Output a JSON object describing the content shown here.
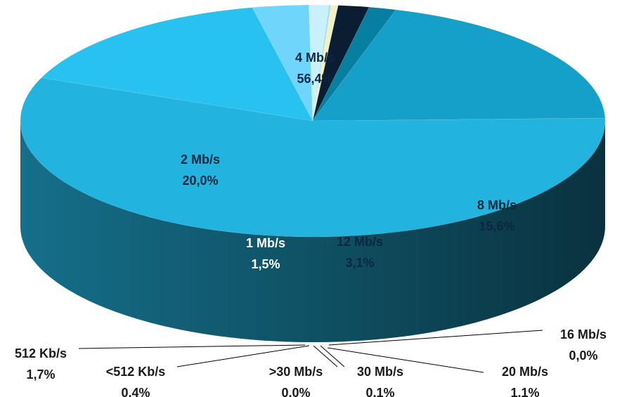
{
  "chart_data": {
    "type": "pie",
    "title": "",
    "slices": [
      {
        "label": "4 Mb/s",
        "value_text": "56,4%",
        "value": 56.4,
        "color": "#22b3de"
      },
      {
        "label": "8 Mb/s",
        "value_text": "15,6%",
        "value": 15.6,
        "color": "#27c2ef"
      },
      {
        "label": "12 Mb/s",
        "value_text": "3,1%",
        "value": 3.1,
        "color": "#6fd5fb"
      },
      {
        "label": "20 Mb/s",
        "value_text": "1,1%",
        "value": 1.1,
        "color": "#c9f1fd"
      },
      {
        "label": "30 Mb/s",
        "value_text": "0,1%",
        "value": 0.1,
        "color": "#9fdff2"
      },
      {
        "label": ">30 Mb/s",
        "value_text": "0,0%",
        "value": 0.0,
        "color": "#e2f0d6"
      },
      {
        "label": "<512 Kb/s",
        "value_text": "0,4%",
        "value": 0.4,
        "color": "#f3f1c3"
      },
      {
        "label": "512 Kb/s",
        "value_text": "1,7%",
        "value": 1.7,
        "color": "#0a1d33"
      },
      {
        "label": "1 Mb/s",
        "value_text": "1,5%",
        "value": 1.5,
        "color": "#067fa1"
      },
      {
        "label": "2 Mb/s",
        "value_text": "20,0%",
        "value": 20.0,
        "color": "#14a0c8"
      },
      {
        "label": "16 Mb/s",
        "value_text": "0,0%",
        "value": 0.0,
        "color": "#4ac8ef"
      }
    ]
  }
}
